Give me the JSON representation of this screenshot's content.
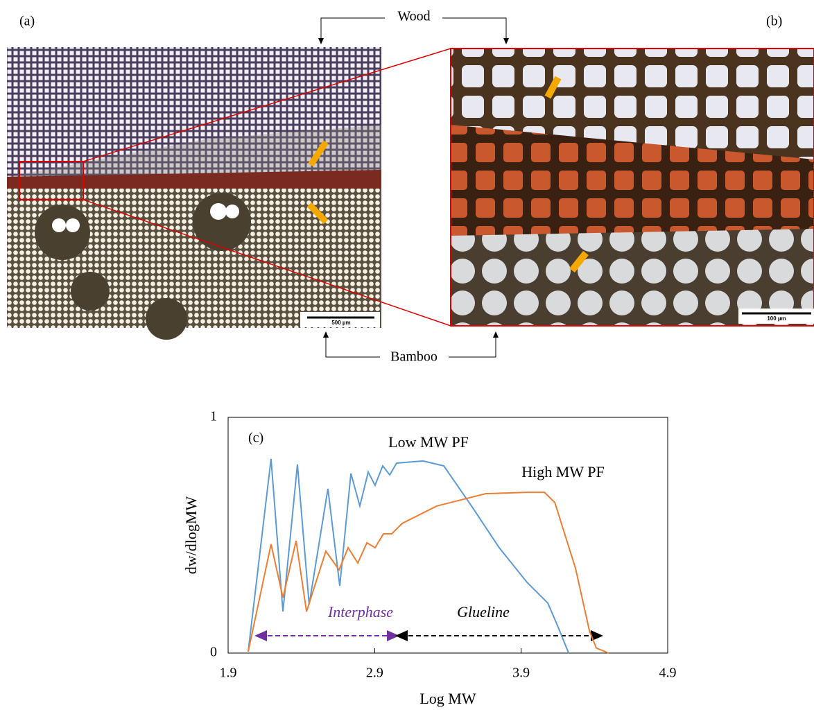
{
  "figure": {
    "panel_a": "(a)",
    "panel_b": "(b)",
    "wood": "Wood",
    "bamboo": "Bamboo",
    "scale_a": "500 µm",
    "scale_b": "100 µm"
  },
  "chart_data": {
    "type": "line",
    "panel": "(c)",
    "x_label": "Log MW",
    "y_label": "dw/dlogMW",
    "xlim": [
      1.9,
      4.9
    ],
    "xticks": [
      1.9,
      2.9,
      3.9,
      4.9
    ],
    "ylim": [
      0,
      1
    ],
    "yticks": [
      0,
      1
    ],
    "annotations": {
      "interphase": "Interphase",
      "glueline": "Glueline"
    },
    "series": [
      {
        "name": "Low MW PF",
        "color": "#5b9bd5",
        "x": [
          2.037,
          2.193,
          2.274,
          2.373,
          2.453,
          2.581,
          2.662,
          2.738,
          2.799,
          2.856,
          2.903,
          2.955,
          3.003,
          3.05,
          3.23,
          3.372,
          3.561,
          3.75,
          3.94,
          4.082,
          4.153,
          4.224
        ],
        "values": [
          0.006,
          0.824,
          0.176,
          0.8,
          0.206,
          0.697,
          0.285,
          0.762,
          0.624,
          0.768,
          0.712,
          0.794,
          0.756,
          0.806,
          0.815,
          0.794,
          0.624,
          0.447,
          0.3,
          0.212,
          0.109,
          0
        ]
      },
      {
        "name": "High MW PF",
        "color": "#ed7d31",
        "x": [
          2.037,
          2.193,
          2.274,
          2.364,
          2.435,
          2.567,
          2.657,
          2.719,
          2.785,
          2.847,
          2.903,
          2.96,
          3.017,
          3.088,
          3.325,
          3.656,
          3.94,
          4.059,
          4.13,
          4.271,
          4.366,
          4.413,
          4.498
        ],
        "values": [
          0.006,
          0.462,
          0.235,
          0.476,
          0.176,
          0.432,
          0.353,
          0.447,
          0.382,
          0.468,
          0.447,
          0.506,
          0.506,
          0.55,
          0.624,
          0.676,
          0.682,
          0.682,
          0.638,
          0.359,
          0.094,
          0.021,
          0
        ]
      }
    ]
  }
}
